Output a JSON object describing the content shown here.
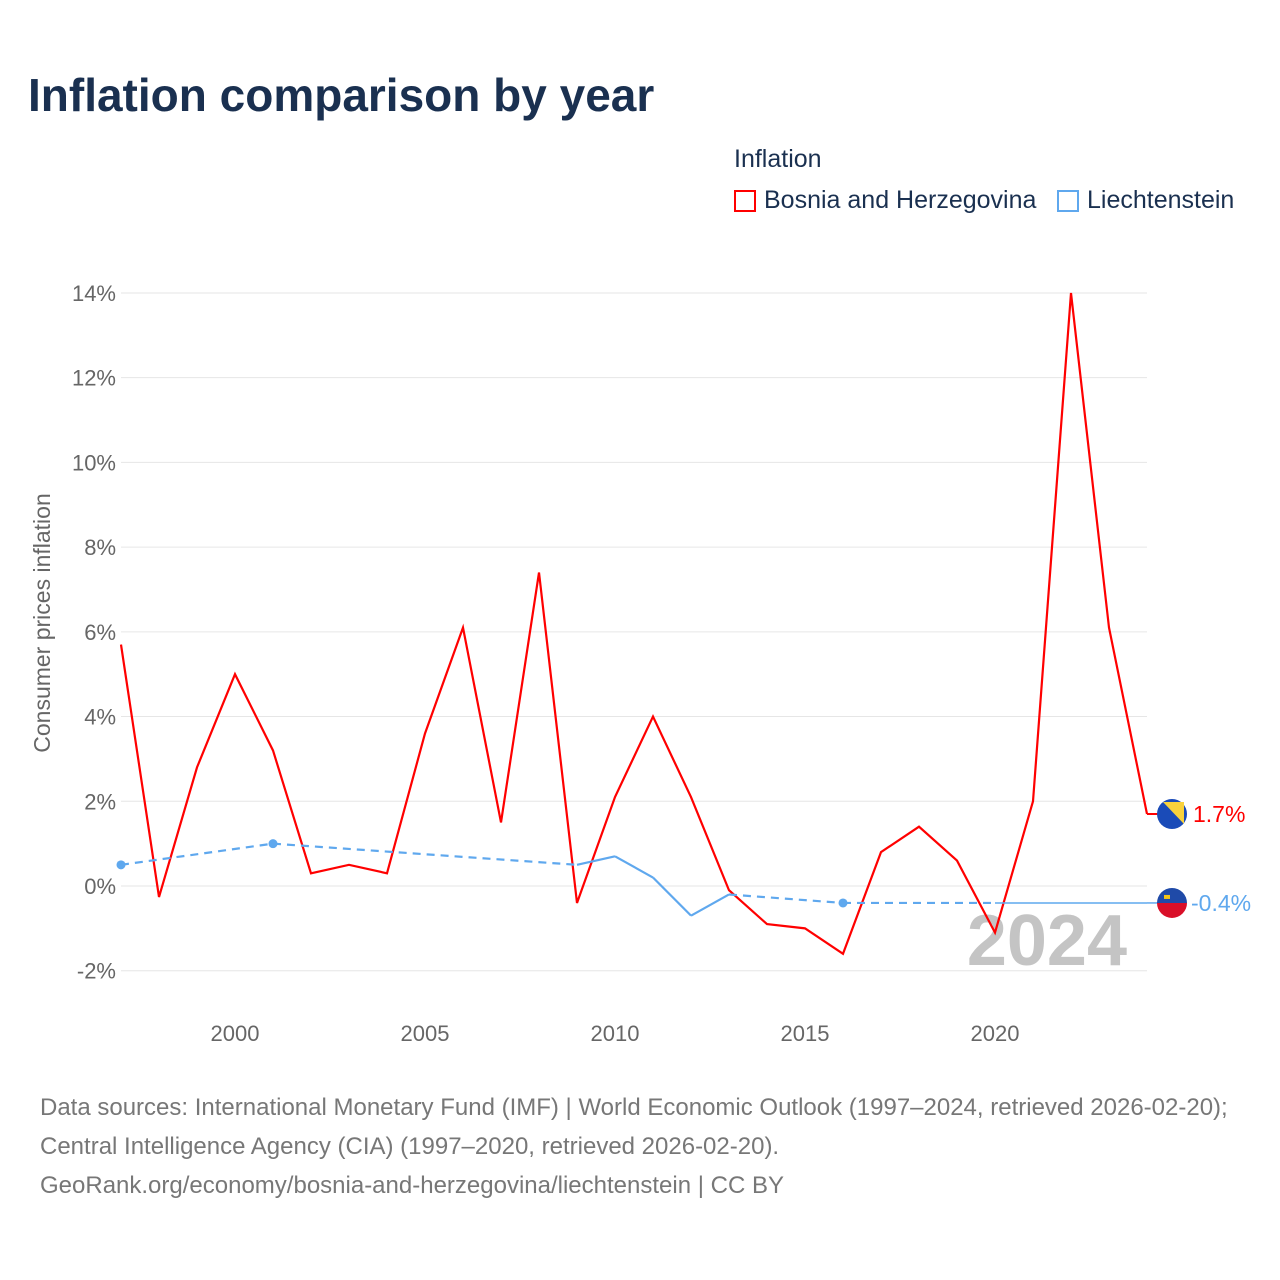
{
  "title": "Inflation comparison by year",
  "legend": {
    "title": "Inflation",
    "items": [
      "Bosnia and Herzegovina",
      "Liechtenstein"
    ]
  },
  "footer": {
    "line1": "Data sources: International Monetary Fund (IMF) | World Economic Outlook (1997–2024, retrieved 2026-02-20); Central Intelligence Agency (CIA) (1997–2020, retrieved 2026-02-20).",
    "line2": "GeoRank.org/economy/bosnia-and-herzegovina/liechtenstein | CC BY"
  },
  "chart_data": {
    "type": "line",
    "title": "Inflation comparison by year",
    "ylabel": "Consumer prices inflation",
    "xlabel": "",
    "xlim": [
      1997,
      2024
    ],
    "ylim": [
      -2,
      14
    ],
    "yticks": [
      -2,
      0,
      2,
      4,
      6,
      8,
      10,
      12,
      14
    ],
    "ytick_labels": [
      "-2%",
      "0%",
      "2%",
      "4%",
      "6%",
      "8%",
      "10%",
      "12%",
      "14%"
    ],
    "xticks": [
      2000,
      2005,
      2010,
      2015,
      2020
    ],
    "xtick_labels": [
      "2000",
      "2005",
      "2010",
      "2015",
      "2020"
    ],
    "watermark_year": "2024",
    "grid": true,
    "legend_position": "top-right",
    "series": [
      {
        "name": "Bosnia and Herzegovina",
        "color": "#ff0000",
        "end_label": "1.7%",
        "x": [
          1997,
          1998,
          1999,
          2000,
          2001,
          2002,
          2003,
          2004,
          2005,
          2006,
          2007,
          2008,
          2009,
          2010,
          2011,
          2012,
          2013,
          2014,
          2015,
          2016,
          2017,
          2018,
          2019,
          2020,
          2021,
          2022,
          2023,
          2024
        ],
        "y": [
          5.7,
          -0.26,
          2.8,
          5.0,
          3.2,
          0.3,
          0.5,
          0.3,
          3.6,
          6.1,
          1.5,
          7.4,
          -0.4,
          2.1,
          4.0,
          2.1,
          -0.1,
          -0.9,
          -1.0,
          -1.6,
          0.8,
          1.4,
          0.6,
          -1.1,
          2.0,
          14.0,
          6.1,
          1.7
        ]
      },
      {
        "name": "Liechtenstein",
        "color": "#5fa8ee",
        "end_label": "-0.4%",
        "x": [
          1997,
          2001,
          2009,
          2010,
          2011,
          2012,
          2013,
          2016,
          2020,
          2024
        ],
        "y": [
          0.5,
          1.0,
          0.5,
          0.7,
          0.2,
          -0.7,
          -0.2,
          -0.4,
          -0.4,
          -0.4
        ]
      }
    ]
  }
}
